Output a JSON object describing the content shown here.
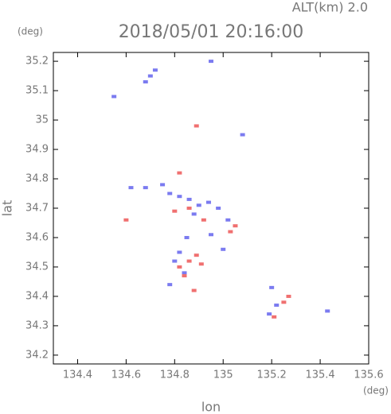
{
  "chart_data": {
    "type": "scatter",
    "title": "2018/05/01 20:16:00",
    "subtitle": "ALT(km) 2.0",
    "x_label": "lon",
    "y_label": "lat",
    "x_unit": "(deg)",
    "y_unit": "(deg)",
    "xlim": [
      134.3,
      135.6
    ],
    "ylim": [
      34.17,
      35.23
    ],
    "xticks": [
      134.4,
      134.6,
      134.8,
      135.0,
      135.2,
      135.4,
      135.6
    ],
    "yticks": [
      34.2,
      34.3,
      34.4,
      34.5,
      34.6,
      34.7,
      34.8,
      34.9,
      35.0,
      35.1,
      35.2
    ],
    "series": [
      {
        "color": "#7b7bf0",
        "x": [
          134.72,
          134.7,
          134.68,
          134.55,
          134.95,
          134.62,
          134.68,
          134.75,
          134.78,
          134.82,
          134.86,
          134.9,
          134.94,
          134.98,
          134.88,
          135.02,
          134.95,
          134.85,
          134.82,
          134.8,
          134.84,
          134.78,
          135.0,
          135.2,
          135.22,
          135.19,
          135.43,
          135.08
        ],
        "values": [
          35.17,
          35.15,
          35.13,
          35.08,
          35.2,
          34.77,
          34.77,
          34.78,
          34.75,
          34.74,
          34.73,
          34.71,
          34.72,
          34.7,
          34.68,
          34.66,
          34.61,
          34.6,
          34.55,
          34.52,
          34.48,
          34.44,
          34.56,
          34.43,
          34.37,
          34.34,
          34.35,
          34.95
        ]
      },
      {
        "color": "#f07070",
        "x": [
          134.89,
          134.82,
          134.8,
          134.86,
          134.92,
          135.03,
          135.05,
          134.89,
          134.86,
          134.91,
          134.82,
          135.27,
          135.25,
          135.21,
          134.6,
          134.88,
          134.84
        ],
        "values": [
          34.98,
          34.82,
          34.69,
          34.7,
          34.66,
          34.62,
          34.64,
          34.54,
          34.52,
          34.51,
          34.5,
          34.4,
          34.38,
          34.33,
          34.66,
          34.42,
          34.47
        ]
      }
    ]
  }
}
